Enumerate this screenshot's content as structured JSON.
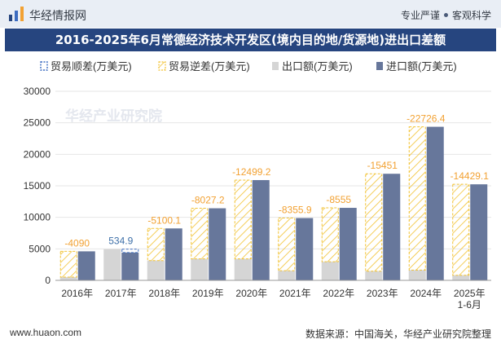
{
  "header": {
    "site_name": "华经情报网",
    "slogan_left": "专业严谨",
    "slogan_right": "客观科学",
    "logo_icon": "bar-chart-logo-icon"
  },
  "footer": {
    "website": "www.huaon.com",
    "source": "数据来源：中国海关，华经产业研究院整理"
  },
  "watermark": "华经产业研究院",
  "colors": {
    "title_bg": "#26457f",
    "surplus": "#3c6cc0",
    "deficit": "#f2c232",
    "export": "#d5d5d5",
    "import": "#67779b"
  },
  "chart_data": {
    "type": "bar",
    "title": "2016-2025年6月常德经济技术开发区(境内目的地/货源地)进出口差额",
    "categories": [
      "2016年",
      "2017年",
      "2018年",
      "2019年",
      "2020年",
      "2021年",
      "2022年",
      "2023年",
      "2024年",
      "2025年\n1-6月"
    ],
    "ylim": [
      0,
      30000
    ],
    "yticks": [
      0,
      5000,
      10000,
      15000,
      20000,
      25000,
      30000
    ],
    "legend": {
      "position": "top",
      "items": [
        "贸易顺差(万美元)",
        "贸易逆差(万美元)",
        "出口额(万美元)",
        "进口额(万美元)"
      ]
    },
    "series": [
      {
        "name": "出口额(万美元)",
        "values": [
          515,
          4950,
          3140,
          3410,
          3410,
          1530,
          2950,
          1460,
          1640,
          810
        ]
      },
      {
        "name": "进口额(万美元)",
        "values": [
          4605,
          4415,
          8240,
          11437,
          15909,
          9885,
          11505,
          16911,
          24366,
          15239
        ]
      }
    ],
    "balance": [
      {
        "label": "-4090",
        "value": -4090
      },
      {
        "label": "534.9",
        "value": 534.9
      },
      {
        "label": "-5100.1",
        "value": -5100.1
      },
      {
        "label": "-8027.2",
        "value": -8027.2
      },
      {
        "label": "-12499.2",
        "value": -12499.2
      },
      {
        "label": "-8355.9",
        "value": -8355.9
      },
      {
        "label": "-8555",
        "value": -8555
      },
      {
        "label": "-15451",
        "value": -15451
      },
      {
        "label": "-22726.4",
        "value": -22726.4
      },
      {
        "label": "-14429.1",
        "value": -14429.1
      }
    ]
  }
}
